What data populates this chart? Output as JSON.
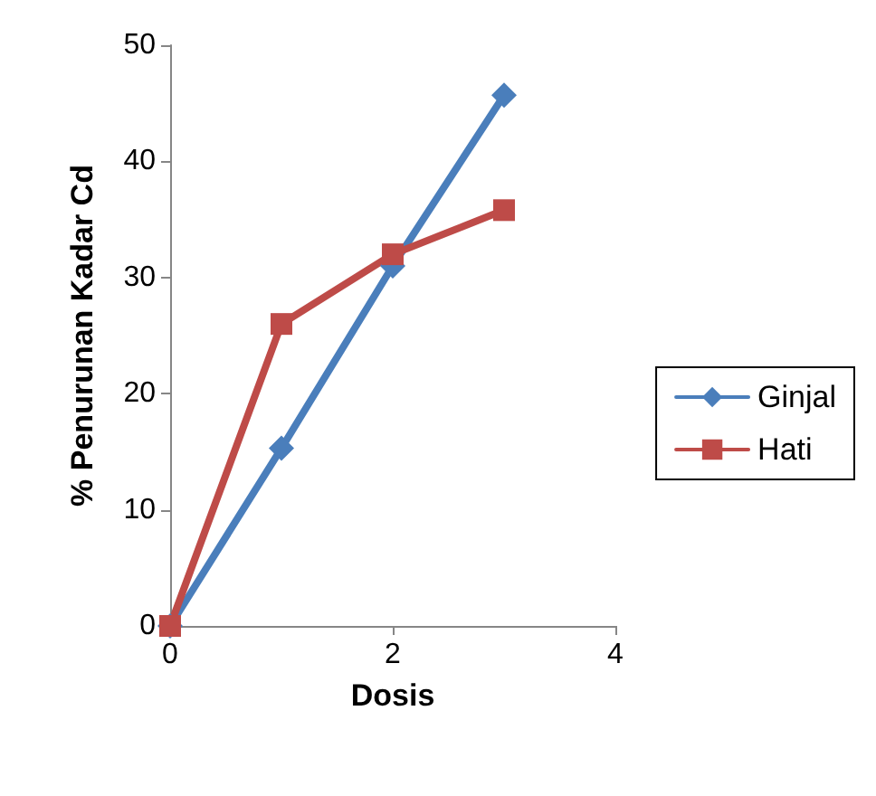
{
  "chart_data": {
    "type": "line",
    "xlabel": "Dosis",
    "ylabel": "% Penurunan Kadar Cd",
    "x": [
      0,
      1,
      2,
      3
    ],
    "series": [
      {
        "name": "Ginjal",
        "color": "#4a7ebb",
        "marker": "diamond",
        "values": [
          0,
          15.3,
          31,
          45.7
        ]
      },
      {
        "name": "Hati",
        "color": "#be4b48",
        "marker": "square",
        "values": [
          0,
          26,
          32,
          35.8
        ]
      }
    ],
    "xlim": [
      0,
      4
    ],
    "xticks": [
      0,
      2,
      4
    ],
    "ylim": [
      0,
      50
    ],
    "yticks": [
      0,
      10,
      20,
      30,
      40,
      50
    ],
    "grid": false,
    "legend": "right"
  }
}
